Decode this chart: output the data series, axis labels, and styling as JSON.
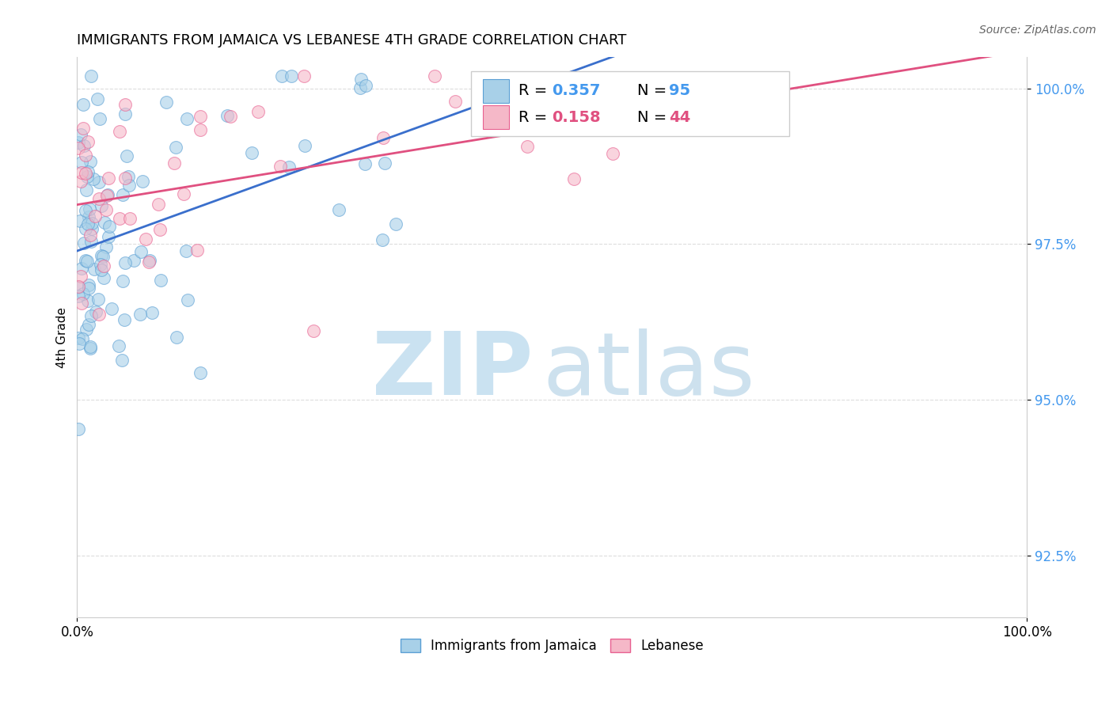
{
  "title": "IMMIGRANTS FROM JAMAICA VS LEBANESE 4TH GRADE CORRELATION CHART",
  "source_text": "Source: ZipAtlas.com",
  "ylabel": "4th Grade",
  "xlim": [
    0.0,
    1.0
  ],
  "ylim": [
    0.915,
    1.005
  ],
  "x_tick_positions": [
    0.0,
    1.0
  ],
  "x_tick_labels": [
    "0.0%",
    "100.0%"
  ],
  "y_tick_positions": [
    0.925,
    0.95,
    0.975,
    1.0
  ],
  "y_tick_labels": [
    "92.5%",
    "95.0%",
    "97.5%",
    "100.0%"
  ],
  "R_jamaica": 0.357,
  "N_jamaica": 95,
  "R_lebanese": 0.158,
  "N_lebanese": 44,
  "color_jamaica": "#a8d0e8",
  "color_lebanese": "#f5b8c8",
  "edge_color_jamaica": "#5a9fd4",
  "edge_color_lebanese": "#e86090",
  "line_color_jamaica": "#3a6fcc",
  "line_color_lebanese": "#e05080",
  "background_color": "#ffffff",
  "watermark_zip_color": "#c5dff0",
  "watermark_atlas_color": "#b8d5e8",
  "legend_labels": [
    "Immigrants from Jamaica",
    "Lebanese"
  ],
  "tick_color": "#4499ee",
  "grid_color": "#dddddd"
}
